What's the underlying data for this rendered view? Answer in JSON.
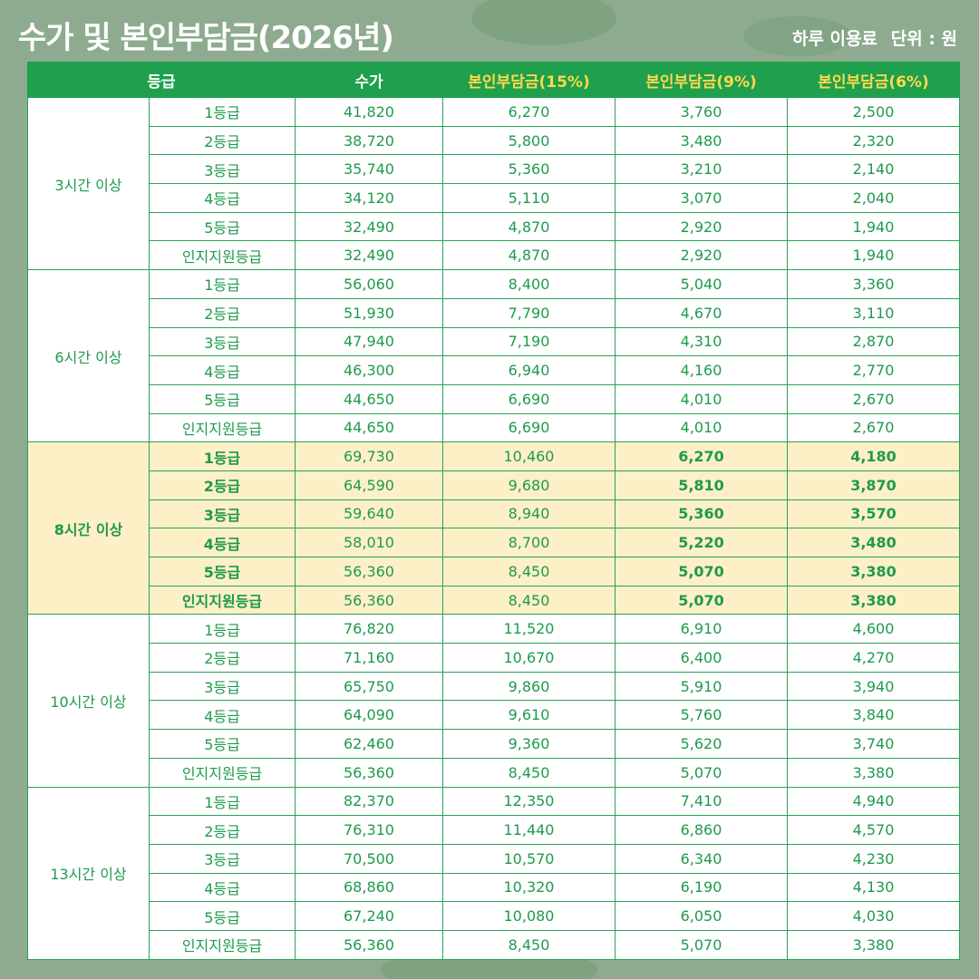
{
  "header": {
    "title": "수가 및 본인부담금(2026년)",
    "note": "하루 이용료",
    "unit": "단위 : 원"
  },
  "table": {
    "columns": [
      "등급",
      "수가",
      "본인부담금(15%)",
      "본인부담금(9%)",
      "본인부담금(6%)"
    ],
    "groups": [
      {
        "label": "3시간 이상",
        "rows": [
          [
            "1등급",
            "41,820",
            "6,270",
            "3,760",
            "2,500"
          ],
          [
            "2등급",
            "38,720",
            "5,800",
            "3,480",
            "2,320"
          ],
          [
            "3등급",
            "35,740",
            "5,360",
            "3,210",
            "2,140"
          ],
          [
            "4등급",
            "34,120",
            "5,110",
            "3,070",
            "2,040"
          ],
          [
            "5등급",
            "32,490",
            "4,870",
            "2,920",
            "1,940"
          ],
          [
            "인지지원등급",
            "32,490",
            "4,870",
            "2,920",
            "1,940"
          ]
        ]
      },
      {
        "label": "6시간 이상",
        "rows": [
          [
            "1등급",
            "56,060",
            "8,400",
            "5,040",
            "3,360"
          ],
          [
            "2등급",
            "51,930",
            "7,790",
            "4,670",
            "3,110"
          ],
          [
            "3등급",
            "47,940",
            "7,190",
            "4,310",
            "2,870"
          ],
          [
            "4등급",
            "46,300",
            "6,940",
            "4,160",
            "2,770"
          ],
          [
            "5등급",
            "44,650",
            "6,690",
            "4,010",
            "2,670"
          ],
          [
            "인지지원등급",
            "44,650",
            "6,690",
            "4,010",
            "2,670"
          ]
        ]
      },
      {
        "label": "8시간 이상",
        "rows": [
          [
            "1등급",
            "69,730",
            "10,460",
            "6,270",
            "4,180"
          ],
          [
            "2등급",
            "64,590",
            "9,680",
            "5,810",
            "3,870"
          ],
          [
            "3등급",
            "59,640",
            "8,940",
            "5,360",
            "3,570"
          ],
          [
            "4등급",
            "58,010",
            "8,700",
            "5,220",
            "3,480"
          ],
          [
            "5등급",
            "56,360",
            "8,450",
            "5,070",
            "3,380"
          ],
          [
            "인지지원등급",
            "56,360",
            "8,450",
            "5,070",
            "3,380"
          ]
        ]
      },
      {
        "label": "10시간 이상",
        "rows": [
          [
            "1등급",
            "76,820",
            "11,520",
            "6,910",
            "4,600"
          ],
          [
            "2등급",
            "71,160",
            "10,670",
            "6,400",
            "4,270"
          ],
          [
            "3등급",
            "65,750",
            "9,860",
            "5,910",
            "3,940"
          ],
          [
            "4등급",
            "64,090",
            "9,610",
            "5,760",
            "3,840"
          ],
          [
            "5등급",
            "62,460",
            "9,360",
            "5,620",
            "3,740"
          ],
          [
            "인지지원등급",
            "56,360",
            "8,450",
            "5,070",
            "3,380"
          ]
        ]
      },
      {
        "label": "13시간 이상",
        "rows": [
          [
            "1등급",
            "82,370",
            "12,350",
            "7,410",
            "4,940"
          ],
          [
            "2등급",
            "76,310",
            "11,440",
            "6,860",
            "4,570"
          ],
          [
            "3등급",
            "70,500",
            "10,570",
            "6,340",
            "4,230"
          ],
          [
            "4등급",
            "68,860",
            "10,320",
            "6,190",
            "4,130"
          ],
          [
            "5등급",
            "67,240",
            "10,080",
            "6,050",
            "4,030"
          ],
          [
            "인지지원등급",
            "56,360",
            "8,450",
            "5,070",
            "3,380"
          ]
        ]
      }
    ]
  }
}
